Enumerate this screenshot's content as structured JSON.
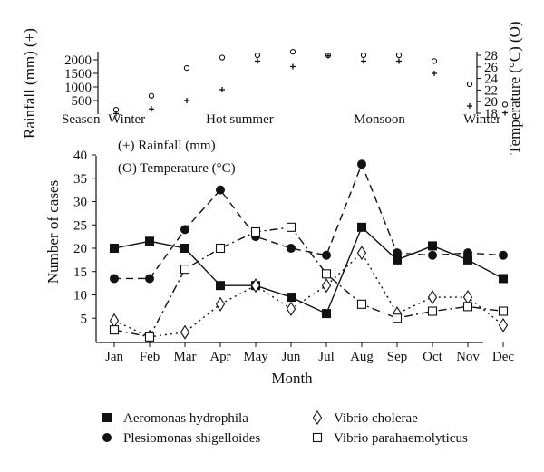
{
  "chart_data": [
    {
      "type": "scatter",
      "panel": "climate",
      "months": [
        "Jan",
        "Feb",
        "Mar",
        "Apr",
        "May",
        "Jun",
        "Jul",
        "Aug",
        "Sep",
        "Oct",
        "Nov",
        "Dec"
      ],
      "series": [
        {
          "name": "Rainfall (mm)",
          "marker": "+",
          "axis": "left",
          "values": [
            20,
            190,
            500,
            900,
            1950,
            1750,
            2150,
            1950,
            1950,
            1500,
            300,
            50
          ]
        },
        {
          "name": "Temperature (°C)",
          "marker": "o",
          "axis": "right",
          "values": [
            18.6,
            21,
            25.8,
            27.6,
            28,
            28.6,
            28,
            28,
            28,
            27,
            23,
            19.5
          ]
        }
      ],
      "ylabel_left": "Rainfall (mm) (+)",
      "ylabel_right": "Temperature (°C) (O)",
      "yticks_left": [
        "2000",
        "1500",
        "1000",
        "500"
      ],
      "yticks_right": [
        "28",
        "26",
        "24",
        "22",
        "20",
        "18"
      ],
      "ylim_left": [
        0,
        2300
      ],
      "ylim_right": [
        18,
        29
      ],
      "season_label": "Season",
      "seasons": [
        {
          "label": "Winter",
          "month": 1.35
        },
        {
          "label": "Hot summer",
          "month": 4.55
        },
        {
          "label": "Monsoon",
          "month": 8.5
        },
        {
          "label": "Winter",
          "month": 11.4
        }
      ]
    },
    {
      "type": "line",
      "panel": "cases",
      "categories": [
        "Jan",
        "Feb",
        "Mar",
        "Apr",
        "May",
        "Jun",
        "Jul",
        "Aug",
        "Sep",
        "Oct",
        "Nov",
        "Dec"
      ],
      "xlabel": "Month",
      "ylabel": "Number of cases",
      "ylim": [
        0,
        42
      ],
      "yticks": [
        "5",
        "10",
        "15",
        "20",
        "25",
        "30",
        "35",
        "40"
      ],
      "annotations": [
        "(+) Rainfall (mm)",
        "(O) Temperature (°C)"
      ],
      "series": [
        {
          "name": "Aeromonas hydrophila",
          "marker": "filled-square",
          "line": "solid",
          "values": [
            20,
            21.5,
            20,
            12,
            12,
            9.5,
            6,
            24.5,
            17.5,
            20.5,
            17.5,
            13.5
          ]
        },
        {
          "name": "Plesiomonas shigelloides",
          "marker": "filled-circle",
          "line": "dashed",
          "values": [
            13.5,
            13.5,
            24,
            32.5,
            22.5,
            20,
            18.5,
            38,
            19,
            18.5,
            19,
            18.5
          ]
        },
        {
          "name": "Vibrio cholerae",
          "marker": "open-diamond",
          "line": "dotted",
          "values": [
            4.5,
            1,
            2,
            8,
            12,
            7,
            12,
            19,
            6,
            9.5,
            9.5,
            3.5
          ]
        },
        {
          "name": "Vibrio parahaemolyticus",
          "marker": "open-square",
          "line": "dashdot",
          "values": [
            2.5,
            1,
            15.5,
            20,
            23.5,
            24.5,
            14.5,
            8,
            5,
            6.5,
            7.5,
            6.5
          ]
        }
      ],
      "legend": [
        "Aeromonas hydrophila",
        "Vibrio cholerae",
        "Plesiomonas shigelloides",
        "Vibrio parahaemolyticus"
      ]
    }
  ]
}
